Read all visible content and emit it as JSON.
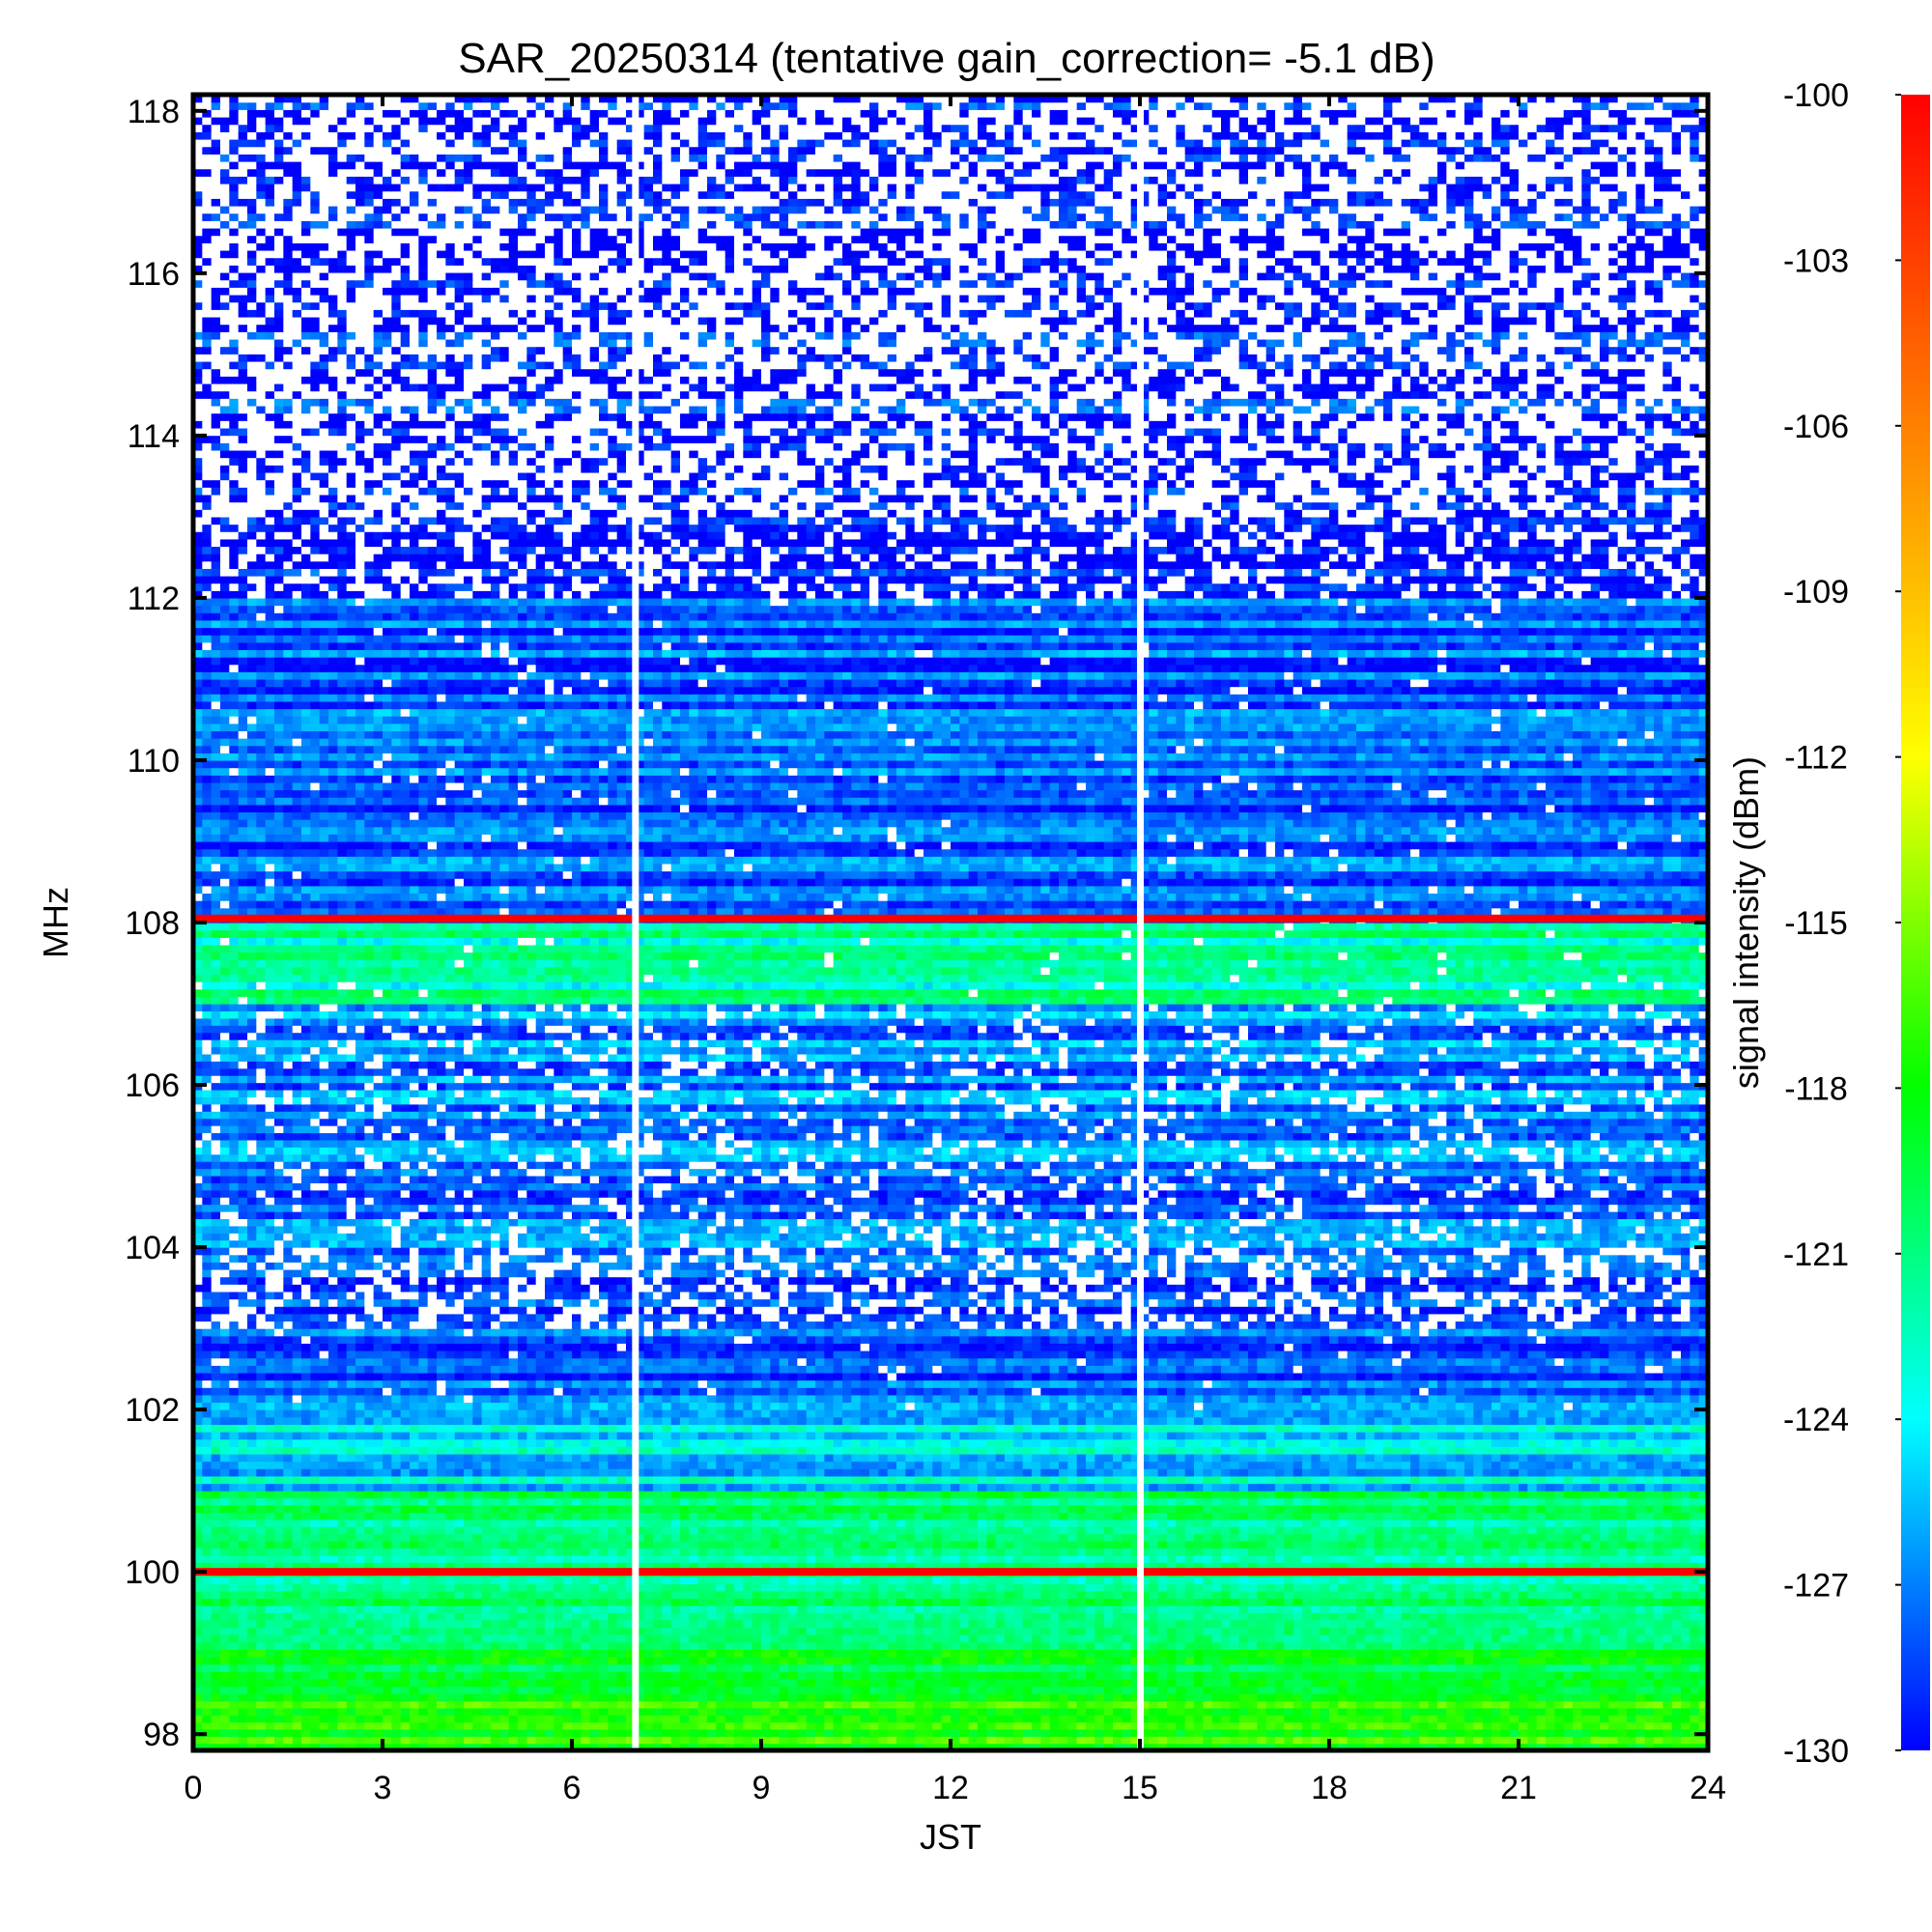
{
  "chart_data": {
    "type": "heatmap",
    "title": "SAR_20250314 (tentative gain_correction= -5.1 dB)",
    "xlabel": "JST",
    "ylabel": "MHz",
    "colorbar_label": "signal intensity (dBm)",
    "xlim": [
      0,
      24
    ],
    "ylim": [
      97.8,
      118.2
    ],
    "x_ticks": [
      0,
      3,
      6,
      9,
      12,
      15,
      18,
      21,
      24
    ],
    "x_tick_labels": [
      "0",
      "3",
      "6",
      "9",
      "12",
      "15",
      "18",
      "21",
      "24"
    ],
    "y_ticks": [
      98,
      100,
      102,
      104,
      106,
      108,
      110,
      112,
      114,
      116,
      118
    ],
    "y_tick_labels": [
      "98",
      "100",
      "102",
      "104",
      "106",
      "108",
      "110",
      "112",
      "114",
      "116",
      "118"
    ],
    "color_range": [
      -130,
      -100
    ],
    "colorbar_ticks": [
      -100,
      -103,
      -106,
      -109,
      -112,
      -115,
      -118,
      -121,
      -124,
      -127,
      -130
    ],
    "colorbar_tick_labels": [
      "-100",
      "-103",
      "-106",
      "-109",
      "-112",
      "-115",
      "-118",
      "-121",
      "-124",
      "-127",
      "-130"
    ],
    "colormap": [
      "#0000ff",
      "#00ffff",
      "#00ff00",
      "#ffff00",
      "#ff8000",
      "#ff0000"
    ],
    "data_gaps_jst": [
      7.0,
      15.0
    ],
    "strong_lines_mhz": [
      {
        "freq": 100.0,
        "dbm": -100
      },
      {
        "freq": 108.05,
        "dbm": -100
      }
    ],
    "bands": [
      {
        "from": 97.8,
        "to": 98.5,
        "level_dbm": -117.5,
        "holes": 0.0
      },
      {
        "from": 98.5,
        "to": 99.5,
        "level_dbm": -119.0,
        "holes": 0.0
      },
      {
        "from": 99.5,
        "to": 101.0,
        "level_dbm": -120.5,
        "holes": 0.0
      },
      {
        "from": 101.0,
        "to": 102.0,
        "level_dbm": -124.5,
        "holes": 0.0
      },
      {
        "from": 102.0,
        "to": 103.0,
        "level_dbm": -127.5,
        "holes": 0.02
      },
      {
        "from": 103.0,
        "to": 104.0,
        "level_dbm": -128.5,
        "holes": 0.35
      },
      {
        "from": 104.0,
        "to": 105.5,
        "level_dbm": -127.0,
        "holes": 0.15
      },
      {
        "from": 105.5,
        "to": 107.0,
        "level_dbm": -126.5,
        "holes": 0.15
      },
      {
        "from": 107.0,
        "to": 108.0,
        "level_dbm": -122.0,
        "holes": 0.03
      },
      {
        "from": 108.0,
        "to": 112.0,
        "level_dbm": -128.0,
        "holes": 0.03
      },
      {
        "from": 112.0,
        "to": 113.0,
        "level_dbm": -129.0,
        "holes": 0.3
      },
      {
        "from": 113.0,
        "to": 118.2,
        "level_dbm": -129.5,
        "holes": 0.55
      }
    ],
    "grid": false,
    "colorbar_placement": "right"
  }
}
